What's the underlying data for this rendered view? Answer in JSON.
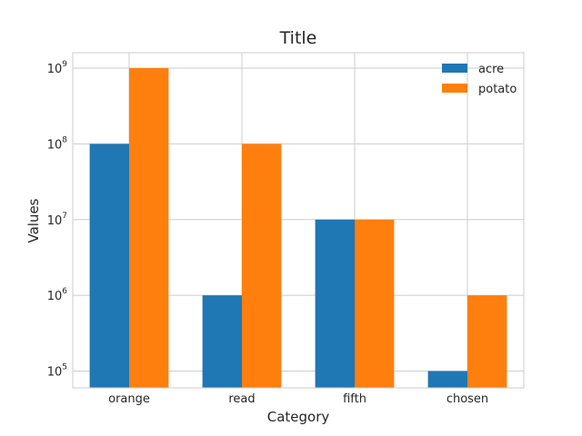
{
  "chart_data": {
    "type": "bar",
    "title": "Title",
    "xlabel": "Category",
    "ylabel": "Values",
    "yscale": "log",
    "ylim": [
      60000,
      1600000000
    ],
    "yticks": [
      100000,
      1000000,
      10000000,
      100000000,
      1000000000
    ],
    "ytick_labels": [
      {
        "base": "10",
        "exp": "5"
      },
      {
        "base": "10",
        "exp": "6"
      },
      {
        "base": "10",
        "exp": "7"
      },
      {
        "base": "10",
        "exp": "8"
      },
      {
        "base": "10",
        "exp": "9"
      }
    ],
    "categories": [
      "orange",
      "read",
      "fifth",
      "chosen"
    ],
    "series": [
      {
        "name": "acre",
        "color": "#1f77b4",
        "values": [
          100000000,
          1000000,
          10000000,
          100000
        ]
      },
      {
        "name": "potato",
        "color": "#ff7f0e",
        "values": [
          1000000000,
          100000000,
          10000000,
          1000000
        ]
      }
    ],
    "grid": true,
    "legend_position": "top-right"
  }
}
